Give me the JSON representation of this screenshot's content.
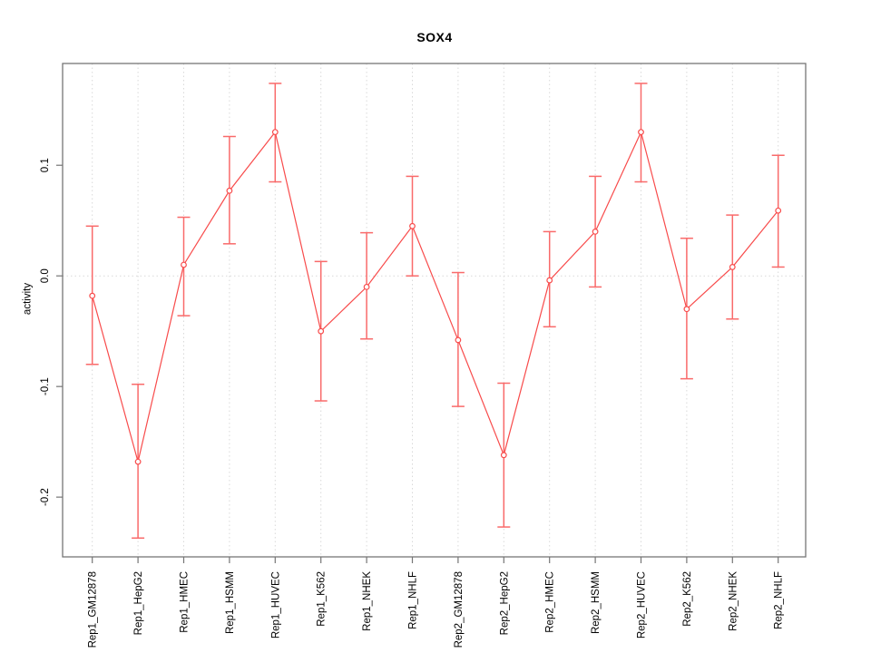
{
  "chart_data": {
    "type": "line",
    "title": "SOX4",
    "xlabel": "",
    "ylabel": "activity",
    "categories": [
      "Rep1_GM12878",
      "Rep1_HepG2",
      "Rep1_HMEC",
      "Rep1_HSMM",
      "Rep1_HUVEC",
      "Rep1_K562",
      "Rep1_NHEK",
      "Rep1_NHLF",
      "Rep2_GM12878",
      "Rep2_HepG2",
      "Rep2_HMEC",
      "Rep2_HSMM",
      "Rep2_HUVEC",
      "Rep2_K562",
      "Rep2_NHEK",
      "Rep2_NHLF"
    ],
    "series": [
      {
        "name": "activity",
        "values": [
          -0.018,
          -0.168,
          0.01,
          0.077,
          0.13,
          -0.05,
          -0.01,
          0.045,
          -0.058,
          -0.162,
          -0.004,
          0.04,
          0.13,
          -0.03,
          0.008,
          0.059
        ],
        "lower": [
          -0.08,
          -0.237,
          -0.036,
          0.029,
          0.085,
          -0.113,
          -0.057,
          0.0,
          -0.118,
          -0.227,
          -0.046,
          -0.01,
          0.085,
          -0.093,
          -0.039,
          0.008
        ],
        "upper": [
          0.045,
          -0.098,
          0.053,
          0.126,
          0.174,
          0.013,
          0.039,
          0.09,
          0.003,
          -0.097,
          0.04,
          0.09,
          0.174,
          0.034,
          0.055,
          0.109
        ]
      }
    ],
    "yticks": [
      0.1,
      0.0,
      -0.1,
      -0.2
    ],
    "ytick_labels": [
      "0.1",
      "0.0",
      "-0.1",
      "-0.2"
    ],
    "ylim": [
      -0.254,
      0.192
    ],
    "grid": {
      "vertical_at_categories": true,
      "horizontal_zero_line": true,
      "style": "dotted"
    },
    "legend": "none",
    "marker": "open-circle",
    "colors": {
      "line": "#f84b4b",
      "marker": "#f84b4b",
      "error_bar": "#f96a6a",
      "grid": "#d9d9d9",
      "frame": "#757575",
      "tick": "#757575",
      "text": "#000000",
      "background": "#ffffff"
    }
  }
}
